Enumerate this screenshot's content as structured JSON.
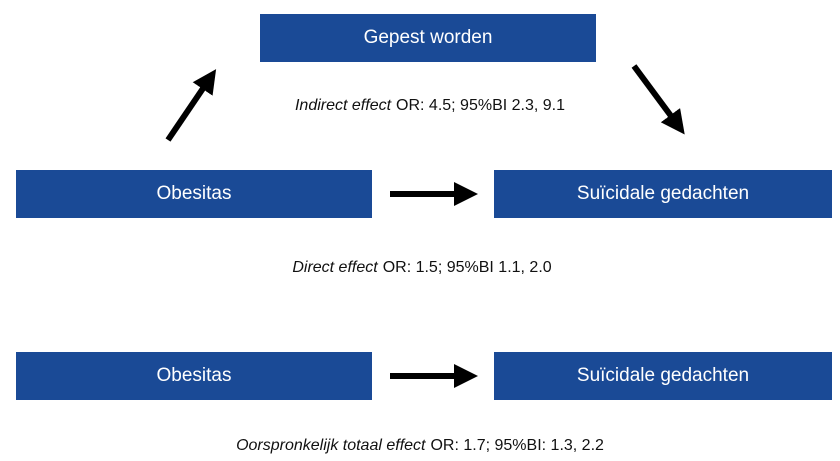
{
  "mediation": {
    "mediator": "Gepest worden",
    "exposure": "Obesitas",
    "outcome": "Suïcidale gedachten",
    "indirect": {
      "label": "Indirect effect",
      "stat": "OR: 4.5; 95%BI 2.3, 9.1"
    },
    "direct": {
      "label": "Direct effect",
      "stat": "OR: 1.5; 95%BI 1.1, 2.0"
    }
  },
  "total": {
    "exposure": "Obesitas",
    "outcome": "Suïcidale gedachten",
    "effect": {
      "label": "Oorspronkelijk totaal effect",
      "stat": "OR: 1.7; 95%BI: 1.3, 2.2"
    }
  }
}
